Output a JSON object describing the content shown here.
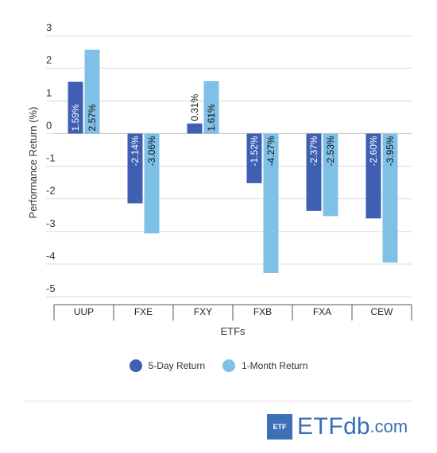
{
  "chart_data": {
    "type": "bar",
    "categories": [
      "UUP",
      "FXE",
      "FXY",
      "FXB",
      "FXA",
      "CEW"
    ],
    "series": [
      {
        "name": "5-Day Return",
        "values": [
          1.59,
          -2.14,
          0.31,
          -1.52,
          -2.37,
          -2.6
        ],
        "labels": [
          "1.59%",
          "-2.14%",
          "0.31%",
          "-1.52%",
          "-2.37%",
          "-2.60%"
        ],
        "color": "#3f5fb3"
      },
      {
        "name": "1-Month Return",
        "values": [
          2.57,
          -3.06,
          1.61,
          -4.27,
          -2.53,
          -3.95
        ],
        "labels": [
          "2.57%",
          "-3.06%",
          "1.61%",
          "-4.27%",
          "-2.53%",
          "-3.95%"
        ],
        "color": "#7fc0e6"
      }
    ],
    "xlabel": "ETFs",
    "ylabel": "Performance Return (%)",
    "ylim": [
      -5,
      3
    ],
    "yticks": [
      "3",
      "2",
      "1",
      "0",
      "-1",
      "-2",
      "-3",
      "-4",
      "-5"
    ],
    "grid": true,
    "legend_position": "bottom"
  },
  "brand": {
    "box": "ETF",
    "part1": "ETF",
    "part2": "db",
    "part3": ".com"
  }
}
